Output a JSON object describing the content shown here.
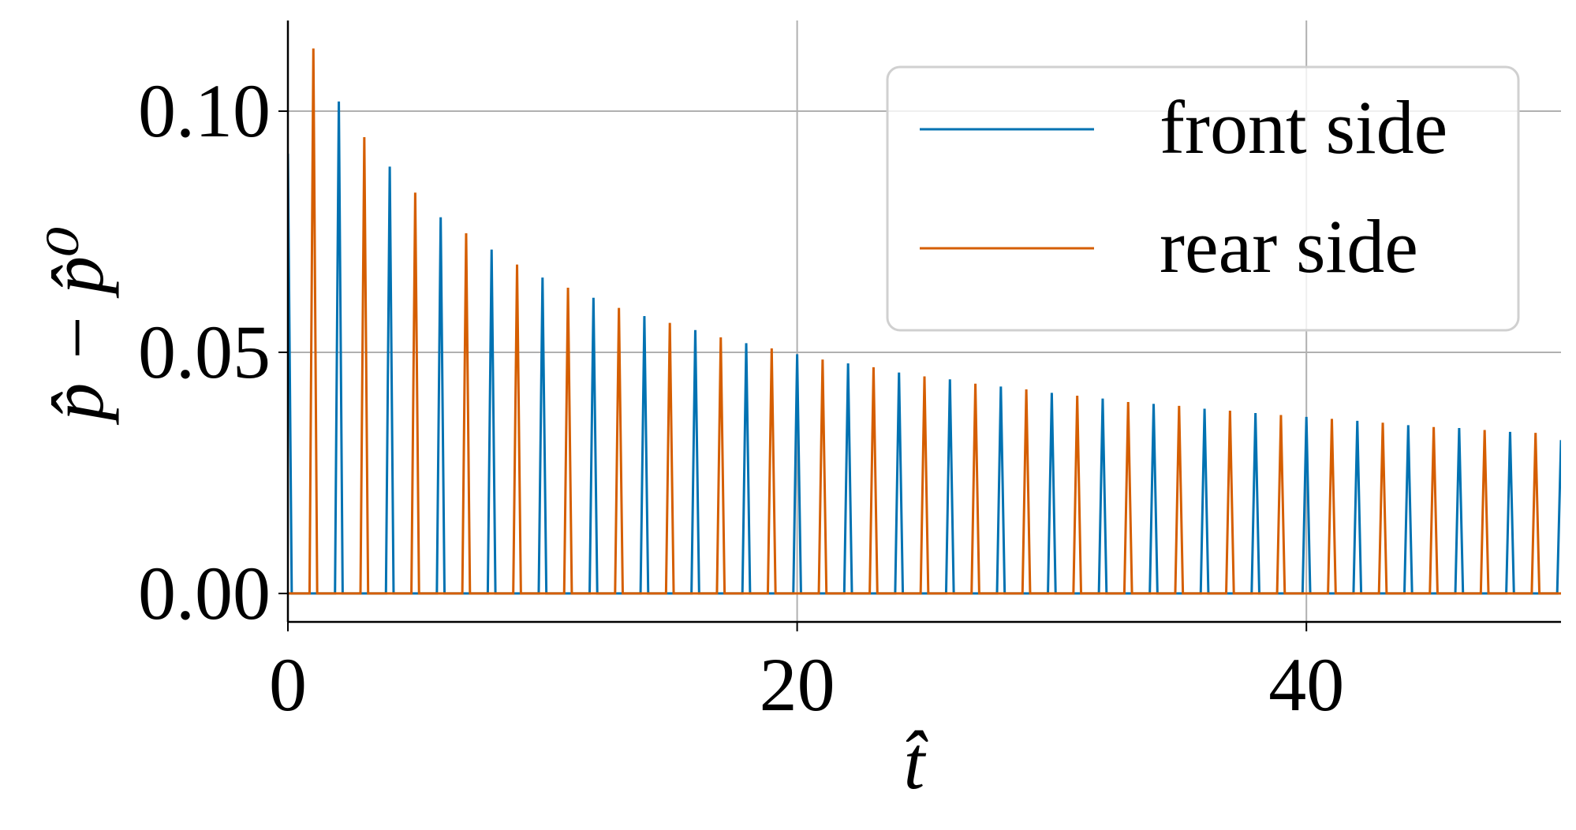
{
  "chart_data": {
    "type": "line",
    "xlabel": "t̂",
    "ylabel": "p̂ − p̂⁰",
    "xlim": [
      0,
      50
    ],
    "ylim": [
      -0.0059,
      0.1188
    ],
    "xticks": [
      0,
      20,
      40
    ],
    "yticks": [
      {
        "value": 0,
        "label": "0.00"
      },
      {
        "value": 0.05,
        "label": "0.05"
      },
      {
        "value": 0.1,
        "label": "0.10"
      }
    ],
    "grid": true,
    "legend": "upper right",
    "series": [
      {
        "name": "front side",
        "color": "#0072b2",
        "x": [
          0,
          0.15,
          1.85,
          2,
          2.15,
          3.85,
          4,
          4.15,
          5.85,
          6,
          6.15,
          7.85,
          8,
          8.15,
          9.85,
          10,
          10.15,
          11.85,
          12,
          12.15,
          13.85,
          14,
          14.15,
          15.85,
          16,
          16.15,
          17.85,
          18,
          18.15,
          19.85,
          20,
          20.15,
          21.85,
          22,
          22.15,
          23.85,
          24,
          24.15,
          25.85,
          26,
          26.15,
          27.85,
          28,
          28.15,
          29.85,
          30,
          30.15,
          31.85,
          32,
          32.15,
          33.85,
          34,
          34.15,
          35.85,
          36,
          36.15,
          37.85,
          38,
          38.15,
          39.85,
          40,
          40.15,
          41.85,
          42,
          42.15,
          43.85,
          44,
          44.15,
          45.85,
          46,
          46.15,
          47.85,
          48,
          48.15,
          49.85,
          50
        ],
        "values": [
          0.0912,
          0,
          0,
          0.102,
          0,
          0,
          0.0885,
          0,
          0,
          0.078,
          0,
          0,
          0.0713,
          0,
          0,
          0.0655,
          0,
          0,
          0.0613,
          0,
          0,
          0.0575,
          0,
          0,
          0.0546,
          0,
          0,
          0.0519,
          0,
          0,
          0.0496,
          0,
          0,
          0.0477,
          0,
          0,
          0.0458,
          0,
          0,
          0.0444,
          0,
          0,
          0.0429,
          0,
          0,
          0.0416,
          0,
          0,
          0.0404,
          0,
          0,
          0.0393,
          0,
          0,
          0.0383,
          0,
          0,
          0.0374,
          0,
          0,
          0.0366,
          0,
          0,
          0.0358,
          0,
          0,
          0.0349,
          0,
          0,
          0.0343,
          0,
          0,
          0.0335,
          0,
          0,
          0.0318
        ]
      },
      {
        "name": "rear side",
        "color": "#d55e00",
        "x": [
          0,
          0.85,
          1,
          1.15,
          2.85,
          3,
          3.15,
          4.85,
          5,
          5.15,
          6.85,
          7,
          7.15,
          8.85,
          9,
          9.15,
          10.85,
          11,
          11.15,
          12.85,
          13,
          13.15,
          14.85,
          15,
          15.15,
          16.85,
          17,
          17.15,
          18.85,
          19,
          19.15,
          20.85,
          21,
          21.15,
          22.85,
          23,
          23.15,
          24.85,
          25,
          25.15,
          26.85,
          27,
          27.15,
          28.85,
          29,
          29.15,
          30.85,
          31,
          31.15,
          32.85,
          33,
          33.15,
          34.85,
          35,
          35.15,
          36.85,
          37,
          37.15,
          38.85,
          39,
          39.15,
          40.85,
          41,
          41.15,
          42.85,
          43,
          43.15,
          44.85,
          45,
          45.15,
          46.85,
          47,
          47.15,
          48.85,
          49,
          49.15,
          50
        ],
        "values": [
          0,
          0,
          0.113,
          0,
          0,
          0.0946,
          0,
          0,
          0.0831,
          0,
          0,
          0.0747,
          0,
          0,
          0.0682,
          0,
          0,
          0.0634,
          0,
          0,
          0.0592,
          0,
          0,
          0.0561,
          0,
          0,
          0.0531,
          0,
          0,
          0.0508,
          0,
          0,
          0.0485,
          0,
          0,
          0.0469,
          0,
          0,
          0.045,
          0,
          0,
          0.0435,
          0,
          0,
          0.0423,
          0,
          0,
          0.041,
          0,
          0,
          0.0397,
          0,
          0,
          0.0389,
          0,
          0,
          0.0379,
          0,
          0,
          0.037,
          0,
          0,
          0.0362,
          0,
          0,
          0.0354,
          0,
          0,
          0.0345,
          0,
          0,
          0.0339,
          0,
          0,
          0.0333,
          0,
          0
        ]
      }
    ]
  }
}
